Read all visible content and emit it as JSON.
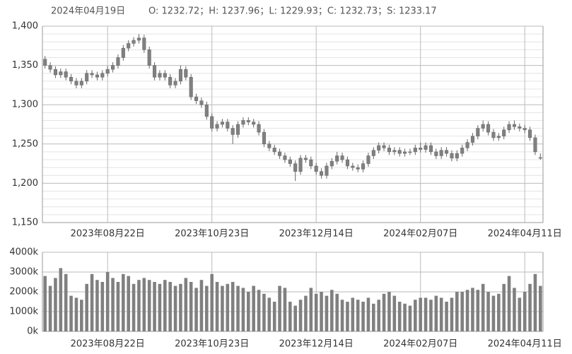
{
  "header": {
    "date": "2024年04月19日",
    "quote": "O: 1232.72；H: 1237.96；L: 1229.93；C: 1232.73；S: 1233.17"
  },
  "chart_data": [
    {
      "type": "candlestick",
      "color": "#808080",
      "grid": true,
      "categories": [
        null,
        null,
        null,
        null,
        null,
        null,
        null,
        null,
        null,
        null,
        null,
        null,
        "2023年08月22日",
        null,
        null,
        null,
        null,
        null,
        null,
        null,
        null,
        null,
        null,
        null,
        null,
        null,
        null,
        null,
        null,
        null,
        null,
        null,
        "2023年10月23日",
        null,
        null,
        null,
        null,
        null,
        null,
        null,
        null,
        null,
        null,
        null,
        null,
        null,
        null,
        null,
        null,
        null,
        null,
        null,
        "2023年12月14日",
        null,
        null,
        null,
        null,
        null,
        null,
        null,
        null,
        null,
        null,
        null,
        null,
        null,
        null,
        null,
        null,
        null,
        null,
        null,
        "2024年02月07日",
        null,
        null,
        null,
        null,
        null,
        null,
        null,
        null,
        null,
        null,
        null,
        null,
        null,
        null,
        null,
        null,
        null,
        null,
        null,
        "2024年04月11日",
        null,
        null,
        null
      ],
      "open": [
        1358,
        1350,
        1345,
        1338,
        1342,
        1335,
        1330,
        1325,
        1330,
        1340,
        1338,
        1335,
        1340,
        1345,
        1350,
        1360,
        1372,
        1378,
        1382,
        1385,
        1370,
        1350,
        1335,
        1340,
        1335,
        1325,
        1330,
        1345,
        1335,
        1310,
        1305,
        1300,
        1285,
        1270,
        1275,
        1278,
        1270,
        1262,
        1275,
        1280,
        1278,
        1275,
        1265,
        1250,
        1245,
        1240,
        1235,
        1230,
        1225,
        1215,
        1232,
        1230,
        1222,
        1215,
        1210,
        1222,
        1228,
        1235,
        1230,
        1222,
        1220,
        1218,
        1225,
        1235,
        1242,
        1248,
        1245,
        1240,
        1242,
        1238,
        1240,
        1240,
        1245,
        1243,
        1248,
        1240,
        1235,
        1242,
        1238,
        1232,
        1238,
        1245,
        1252,
        1260,
        1270,
        1275,
        1265,
        1258,
        1260,
        1268,
        1275,
        1272,
        1270,
        1268,
        1258,
        1232.72
      ],
      "high": [
        1362,
        1354,
        1349,
        1346,
        1346,
        1339,
        1334,
        1334,
        1344,
        1344,
        1342,
        1344,
        1349,
        1354,
        1364,
        1376,
        1382,
        1386,
        1390,
        1389,
        1374,
        1354,
        1344,
        1344,
        1339,
        1334,
        1350,
        1349,
        1339,
        1314,
        1309,
        1304,
        1289,
        1279,
        1282,
        1282,
        1274,
        1279,
        1284,
        1284,
        1282,
        1279,
        1269,
        1254,
        1249,
        1244,
        1239,
        1234,
        1229,
        1236,
        1236,
        1234,
        1226,
        1219,
        1226,
        1232,
        1240,
        1239,
        1234,
        1226,
        1224,
        1229,
        1239,
        1246,
        1252,
        1252,
        1249,
        1246,
        1246,
        1244,
        1244,
        1249,
        1252,
        1252,
        1252,
        1244,
        1246,
        1246,
        1242,
        1242,
        1249,
        1256,
        1264,
        1274,
        1280,
        1279,
        1269,
        1264,
        1272,
        1279,
        1280,
        1276,
        1274,
        1272,
        1262,
        1237.96
      ],
      "low": [
        1346,
        1341,
        1334,
        1334,
        1331,
        1326,
        1321,
        1321,
        1326,
        1334,
        1331,
        1331,
        1336,
        1341,
        1346,
        1356,
        1368,
        1374,
        1378,
        1366,
        1346,
        1331,
        1331,
        1331,
        1321,
        1321,
        1326,
        1331,
        1306,
        1301,
        1296,
        1281,
        1266,
        1266,
        1271,
        1266,
        1250,
        1258,
        1271,
        1274,
        1271,
        1261,
        1246,
        1241,
        1236,
        1231,
        1226,
        1221,
        1203,
        1211,
        1226,
        1218,
        1211,
        1206,
        1206,
        1218,
        1224,
        1226,
        1218,
        1216,
        1214,
        1214,
        1221,
        1231,
        1238,
        1241,
        1236,
        1236,
        1234,
        1234,
        1236,
        1236,
        1239,
        1239,
        1236,
        1231,
        1231,
        1234,
        1228,
        1228,
        1234,
        1241,
        1248,
        1256,
        1266,
        1261,
        1254,
        1254,
        1256,
        1264,
        1268,
        1266,
        1264,
        1254,
        1236,
        1229.93
      ],
      "close": [
        1350,
        1345,
        1338,
        1342,
        1335,
        1330,
        1325,
        1330,
        1340,
        1338,
        1335,
        1340,
        1345,
        1350,
        1360,
        1372,
        1378,
        1382,
        1385,
        1370,
        1350,
        1335,
        1340,
        1335,
        1325,
        1330,
        1345,
        1335,
        1310,
        1305,
        1300,
        1285,
        1270,
        1275,
        1278,
        1270,
        1262,
        1275,
        1280,
        1278,
        1275,
        1265,
        1250,
        1245,
        1240,
        1235,
        1230,
        1225,
        1215,
        1232,
        1230,
        1222,
        1215,
        1210,
        1222,
        1228,
        1235,
        1230,
        1222,
        1220,
        1218,
        1225,
        1235,
        1242,
        1248,
        1245,
        1240,
        1242,
        1238,
        1240,
        1240,
        1245,
        1243,
        1248,
        1240,
        1235,
        1242,
        1238,
        1232,
        1238,
        1245,
        1252,
        1260,
        1270,
        1275,
        1265,
        1258,
        1260,
        1268,
        1275,
        1272,
        1270,
        1268,
        1258,
        1240,
        1232.73
      ],
      "ylim": [
        1150,
        1400
      ],
      "yticks": [
        {
          "value": 1150,
          "label": "1,150"
        },
        {
          "value": 1200,
          "label": "1,200"
        },
        {
          "value": 1250,
          "label": "1,250"
        },
        {
          "value": 1300,
          "label": "1,300"
        },
        {
          "value": 1350,
          "label": "1,350"
        },
        {
          "value": 1400,
          "label": "1,400"
        }
      ]
    },
    {
      "type": "bar",
      "color": "#808080",
      "grid": true,
      "categories": [
        null,
        null,
        null,
        null,
        null,
        null,
        null,
        null,
        null,
        null,
        null,
        null,
        "2023年08月22日",
        null,
        null,
        null,
        null,
        null,
        null,
        null,
        null,
        null,
        null,
        null,
        null,
        null,
        null,
        null,
        null,
        null,
        null,
        null,
        "2023年10月23日",
        null,
        null,
        null,
        null,
        null,
        null,
        null,
        null,
        null,
        null,
        null,
        null,
        null,
        null,
        null,
        null,
        null,
        null,
        null,
        "2023年12月14日",
        null,
        null,
        null,
        null,
        null,
        null,
        null,
        null,
        null,
        null,
        null,
        null,
        null,
        null,
        null,
        null,
        null,
        null,
        null,
        "2024年02月07日",
        null,
        null,
        null,
        null,
        null,
        null,
        null,
        null,
        null,
        null,
        null,
        null,
        null,
        null,
        null,
        null,
        null,
        null,
        null,
        "2024年04月11日",
        null,
        null,
        null
      ],
      "values": [
        2800000,
        2300000,
        2700000,
        3200000,
        2900000,
        1800000,
        1700000,
        1600000,
        2400000,
        2900000,
        2600000,
        2500000,
        3000000,
        2700000,
        2500000,
        2900000,
        2800000,
        2400000,
        2600000,
        2700000,
        2600000,
        2500000,
        2400000,
        2600000,
        2500000,
        2300000,
        2400000,
        2700000,
        2500000,
        2200000,
        2600000,
        2300000,
        2900000,
        2500000,
        2300000,
        2400000,
        2500000,
        2300000,
        2200000,
        2000000,
        2300000,
        2100000,
        1900000,
        1700000,
        1500000,
        2300000,
        2200000,
        1500000,
        1300000,
        1600000,
        1800000,
        2200000,
        1900000,
        2000000,
        1800000,
        2100000,
        1900000,
        1600000,
        1500000,
        1700000,
        1600000,
        1500000,
        1700000,
        1400000,
        1600000,
        1900000,
        2000000,
        1800000,
        1500000,
        1400000,
        1300000,
        1600000,
        1700000,
        1700000,
        1600000,
        1800000,
        1700000,
        1500000,
        1700000,
        2000000,
        2000000,
        2100000,
        2200000,
        2100000,
        2400000,
        2000000,
        1800000,
        1900000,
        2400000,
        2800000,
        2200000,
        1700000,
        2000000,
        2400000,
        2900000,
        2300000
      ],
      "ylim": [
        0,
        4000000
      ],
      "yticks": [
        {
          "value": 0,
          "label": "0k"
        },
        {
          "value": 1000000,
          "label": "1000k"
        },
        {
          "value": 2000000,
          "label": "2000k"
        },
        {
          "value": 3000000,
          "label": "3000k"
        },
        {
          "value": 4000000,
          "label": "4000k"
        }
      ]
    }
  ]
}
